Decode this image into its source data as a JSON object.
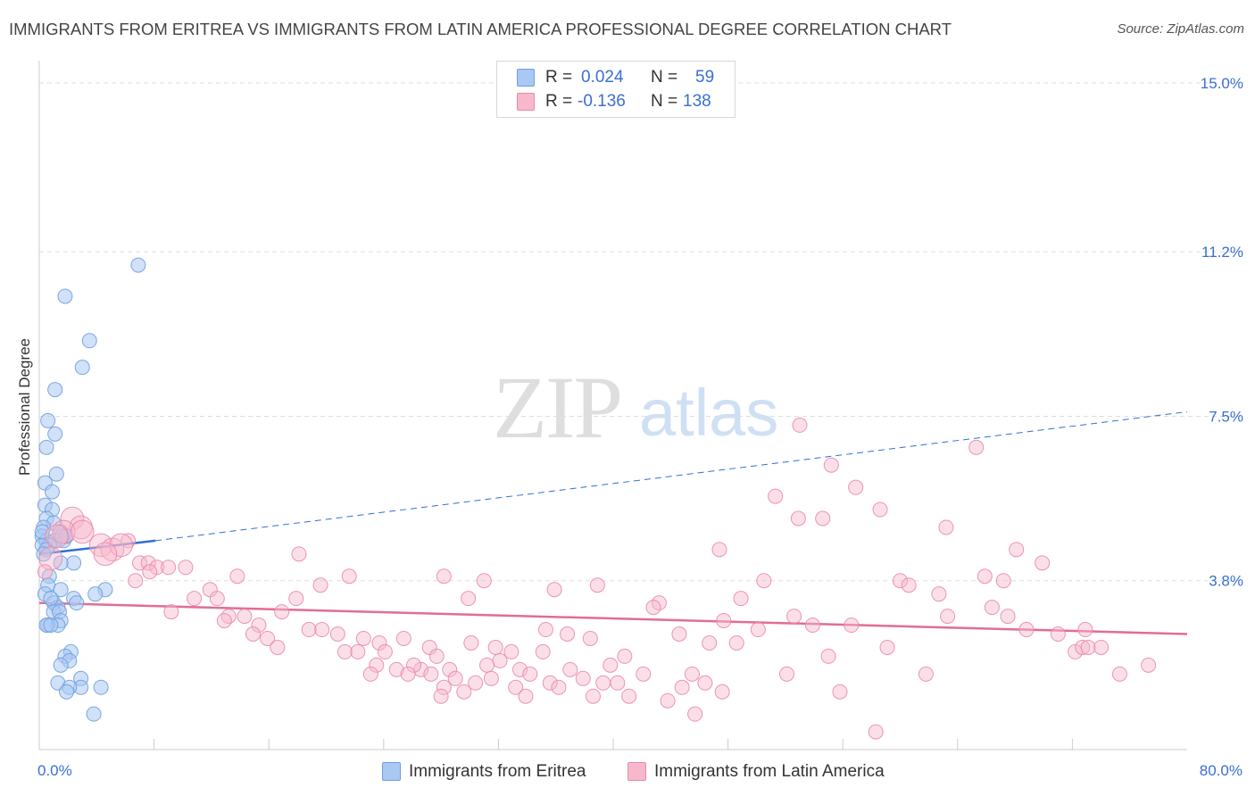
{
  "title": "IMMIGRANTS FROM ERITREA VS IMMIGRANTS FROM LATIN AMERICA PROFESSIONAL DEGREE CORRELATION CHART",
  "source": "Source: ZipAtlas.com",
  "watermark": {
    "zip": "ZIP",
    "atlas": "atlas"
  },
  "legend": {
    "rows": [
      {
        "r_label": "R =",
        "r_value": "0.024",
        "n_label": "N =",
        "n_value": "59",
        "color": "#a9c8f2",
        "border": "#6e9fe0"
      },
      {
        "r_label": "R =",
        "r_value": "-0.136",
        "n_label": "N =",
        "n_value": "138",
        "color": "#f7b8cb",
        "border": "#ea8aa8"
      }
    ]
  },
  "chart_data": {
    "type": "scatter",
    "title": "IMMIGRANTS FROM ERITREA VS IMMIGRANTS FROM LATIN AMERICA PROFESSIONAL DEGREE CORRELATION CHART",
    "xlabel": "",
    "ylabel": "Professional Degree",
    "xlim": [
      0,
      80
    ],
    "ylim": [
      0,
      15.5
    ],
    "x_tick_labels": [
      {
        "value": 0,
        "label": "0.0%"
      },
      {
        "value": 80,
        "label": "80.0%"
      }
    ],
    "y_tick_labels": [
      {
        "value": 3.8,
        "label": "3.8%"
      },
      {
        "value": 7.5,
        "label": "7.5%"
      },
      {
        "value": 11.2,
        "label": "11.2%"
      },
      {
        "value": 15.0,
        "label": "15.0%"
      }
    ],
    "x_minor_ticks": [
      8,
      16,
      24,
      32,
      40,
      48,
      56,
      64,
      72
    ],
    "grid": true,
    "series": [
      {
        "name": "Immigrants from Eritrea",
        "color": "#6e9fe0",
        "fill": "#a9c8f2",
        "trend": {
          "x0": 0,
          "y0": 4.4,
          "x1": 8.1,
          "y1": 4.7,
          "dash_to_x": 80,
          "dash_to_y": 7.6,
          "color": "#2f6fd6"
        },
        "points": [
          [
            6.9,
            10.9
          ],
          [
            1.8,
            10.2
          ],
          [
            3.5,
            9.2
          ],
          [
            3.0,
            8.6
          ],
          [
            1.1,
            8.1
          ],
          [
            0.6,
            7.4
          ],
          [
            1.1,
            7.1
          ],
          [
            0.5,
            6.8
          ],
          [
            1.2,
            6.2
          ],
          [
            0.4,
            6.0
          ],
          [
            0.9,
            5.8
          ],
          [
            0.4,
            5.5
          ],
          [
            0.9,
            5.4
          ],
          [
            0.5,
            5.2
          ],
          [
            1.0,
            5.1
          ],
          [
            0.3,
            5.0
          ],
          [
            1.5,
            4.9
          ],
          [
            0.2,
            4.8
          ],
          [
            0.5,
            4.7
          ],
          [
            1.7,
            4.7
          ],
          [
            1.1,
            4.7
          ],
          [
            0.7,
            4.6
          ],
          [
            0.2,
            4.6
          ],
          [
            0.5,
            4.5
          ],
          [
            0.3,
            4.4
          ],
          [
            1.9,
            4.8
          ],
          [
            2.4,
            4.2
          ],
          [
            1.5,
            4.2
          ],
          [
            0.7,
            3.9
          ],
          [
            0.6,
            3.7
          ],
          [
            1.5,
            3.6
          ],
          [
            0.4,
            3.5
          ],
          [
            4.6,
            3.6
          ],
          [
            3.9,
            3.5
          ],
          [
            2.4,
            3.4
          ],
          [
            1.0,
            3.3
          ],
          [
            1.3,
            3.2
          ],
          [
            1.0,
            3.1
          ],
          [
            1.4,
            3.1
          ],
          [
            1.5,
            2.9
          ],
          [
            0.6,
            2.8
          ],
          [
            1.3,
            2.8
          ],
          [
            0.5,
            2.8
          ],
          [
            0.8,
            2.8
          ],
          [
            2.2,
            2.2
          ],
          [
            1.8,
            2.1
          ],
          [
            2.1,
            2.0
          ],
          [
            1.5,
            1.9
          ],
          [
            2.9,
            1.6
          ],
          [
            1.3,
            1.5
          ],
          [
            2.9,
            1.4
          ],
          [
            2.1,
            1.4
          ],
          [
            1.9,
            1.3
          ],
          [
            4.3,
            1.4
          ],
          [
            3.8,
            0.8
          ],
          [
            0.2,
            4.9
          ],
          [
            0.8,
            3.4
          ],
          [
            2.6,
            3.3
          ],
          [
            1.6,
            4.8
          ]
        ]
      },
      {
        "name": "Immigrants from Latin America",
        "color": "#ea8aa8",
        "fill": "#f7b8cb",
        "trend": {
          "x0": 0,
          "y0": 3.3,
          "x1": 80,
          "y1": 2.6,
          "color": "#e26c97"
        },
        "points": [
          [
            2.3,
            5.2
          ],
          [
            2.9,
            5.0
          ],
          [
            1.7,
            4.9
          ],
          [
            3.0,
            4.9
          ],
          [
            1.2,
            4.8
          ],
          [
            4.3,
            4.6
          ],
          [
            5.1,
            4.5
          ],
          [
            6.2,
            4.7
          ],
          [
            5.7,
            4.6
          ],
          [
            4.6,
            4.4
          ],
          [
            18.1,
            4.4
          ],
          [
            0.8,
            4.3
          ],
          [
            7.0,
            4.2
          ],
          [
            7.6,
            4.2
          ],
          [
            8.2,
            4.1
          ],
          [
            9.0,
            4.1
          ],
          [
            10.2,
            4.1
          ],
          [
            0.4,
            4.0
          ],
          [
            7.7,
            4.0
          ],
          [
            13.8,
            3.9
          ],
          [
            21.6,
            3.9
          ],
          [
            6.7,
            3.8
          ],
          [
            19.6,
            3.7
          ],
          [
            11.9,
            3.6
          ],
          [
            10.8,
            3.4
          ],
          [
            12.4,
            3.4
          ],
          [
            17.9,
            3.4
          ],
          [
            9.2,
            3.1
          ],
          [
            16.9,
            3.1
          ],
          [
            13.2,
            3.0
          ],
          [
            14.3,
            3.0
          ],
          [
            12.9,
            2.9
          ],
          [
            15.3,
            2.8
          ],
          [
            18.8,
            2.7
          ],
          [
            19.7,
            2.7
          ],
          [
            14.9,
            2.6
          ],
          [
            20.8,
            2.6
          ],
          [
            15.9,
            2.5
          ],
          [
            22.6,
            2.5
          ],
          [
            23.7,
            2.4
          ],
          [
            25.4,
            2.5
          ],
          [
            16.6,
            2.3
          ],
          [
            21.3,
            2.2
          ],
          [
            22.2,
            2.2
          ],
          [
            24.1,
            2.2
          ],
          [
            30.1,
            2.4
          ],
          [
            27.2,
            2.3
          ],
          [
            31.8,
            2.3
          ],
          [
            32.9,
            2.2
          ],
          [
            36.8,
            2.6
          ],
          [
            35.3,
            2.7
          ],
          [
            38.4,
            2.5
          ],
          [
            29.9,
            3.4
          ],
          [
            35.9,
            3.6
          ],
          [
            38.9,
            3.7
          ],
          [
            27.7,
            2.1
          ],
          [
            32.1,
            2.0
          ],
          [
            35.1,
            2.2
          ],
          [
            40.8,
            2.1
          ],
          [
            26.6,
            1.8
          ],
          [
            23.5,
            1.9
          ],
          [
            24.9,
            1.8
          ],
          [
            26.1,
            1.9
          ],
          [
            28.6,
            1.8
          ],
          [
            31.2,
            1.9
          ],
          [
            33.5,
            1.8
          ],
          [
            37.0,
            1.8
          ],
          [
            39.8,
            1.9
          ],
          [
            29.0,
            1.6
          ],
          [
            27.3,
            1.7
          ],
          [
            30.4,
            1.5
          ],
          [
            31.5,
            1.6
          ],
          [
            34.2,
            1.7
          ],
          [
            35.6,
            1.5
          ],
          [
            37.9,
            1.6
          ],
          [
            39.3,
            1.5
          ],
          [
            40.3,
            1.5
          ],
          [
            23.1,
            1.7
          ],
          [
            25.7,
            1.7
          ],
          [
            28.2,
            1.4
          ],
          [
            29.6,
            1.3
          ],
          [
            33.2,
            1.4
          ],
          [
            36.2,
            1.4
          ],
          [
            42.1,
            1.7
          ],
          [
            44.8,
            1.4
          ],
          [
            45.5,
            1.7
          ],
          [
            46.4,
            1.5
          ],
          [
            28.0,
            1.2
          ],
          [
            33.9,
            1.2
          ],
          [
            38.6,
            1.2
          ],
          [
            41.1,
            1.2
          ],
          [
            43.8,
            1.1
          ],
          [
            47.6,
            1.3
          ],
          [
            45.7,
            0.8
          ],
          [
            55.8,
            1.3
          ],
          [
            58.3,
            0.4
          ],
          [
            61.8,
            1.7
          ],
          [
            52.1,
            1.7
          ],
          [
            43.2,
            3.3
          ],
          [
            42.8,
            3.2
          ],
          [
            44.6,
            2.6
          ],
          [
            46.7,
            2.4
          ],
          [
            47.7,
            2.9
          ],
          [
            48.6,
            2.4
          ],
          [
            50.1,
            2.7
          ],
          [
            52.6,
            3.0
          ],
          [
            53.9,
            2.8
          ],
          [
            56.6,
            2.8
          ],
          [
            55.0,
            2.1
          ],
          [
            59.1,
            2.3
          ],
          [
            60.0,
            3.8
          ],
          [
            60.6,
            3.7
          ],
          [
            62.7,
            3.5
          ],
          [
            63.3,
            3.0
          ],
          [
            65.9,
            3.9
          ],
          [
            67.2,
            3.8
          ],
          [
            66.4,
            3.2
          ],
          [
            67.5,
            3.0
          ],
          [
            68.8,
            2.7
          ],
          [
            71.0,
            2.6
          ],
          [
            72.2,
            2.2
          ],
          [
            72.7,
            2.3
          ],
          [
            73.1,
            2.3
          ],
          [
            74.0,
            2.3
          ],
          [
            75.3,
            1.7
          ],
          [
            77.3,
            1.9
          ],
          [
            72.9,
            2.7
          ],
          [
            48.9,
            3.4
          ],
          [
            50.5,
            3.8
          ],
          [
            51.3,
            5.7
          ],
          [
            52.9,
            5.2
          ],
          [
            54.6,
            5.2
          ],
          [
            55.2,
            6.4
          ],
          [
            56.9,
            5.9
          ],
          [
            58.6,
            5.4
          ],
          [
            53.0,
            7.3
          ],
          [
            65.3,
            6.8
          ],
          [
            63.2,
            5.0
          ],
          [
            68.1,
            4.5
          ],
          [
            69.9,
            4.2
          ],
          [
            47.4,
            4.5
          ],
          [
            28.2,
            3.9
          ],
          [
            31.0,
            3.8
          ]
        ]
      }
    ]
  }
}
